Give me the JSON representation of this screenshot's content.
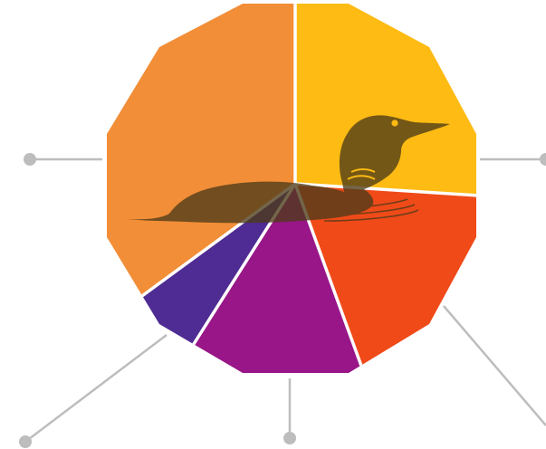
{
  "diagram": {
    "shape": "dodecagon",
    "slice_separator_color": "#ffffff",
    "connector_color": "#bdbdbd",
    "segments": [
      {
        "id": "top-left",
        "color": "#F28E38"
      },
      {
        "id": "top-right",
        "color": "#FDBB13"
      },
      {
        "id": "right",
        "color": "#F04A19"
      },
      {
        "id": "bottom",
        "color": "#981688"
      },
      {
        "id": "bottom-left",
        "color": "#4F2C93"
      }
    ],
    "icon": {
      "name": "loon-bird-icon",
      "color": "#4d3b18",
      "opacity": 0.78
    },
    "connectors": [
      {
        "id": "left"
      },
      {
        "id": "right"
      },
      {
        "id": "lower-right"
      },
      {
        "id": "bottom"
      },
      {
        "id": "lower-left"
      }
    ]
  }
}
